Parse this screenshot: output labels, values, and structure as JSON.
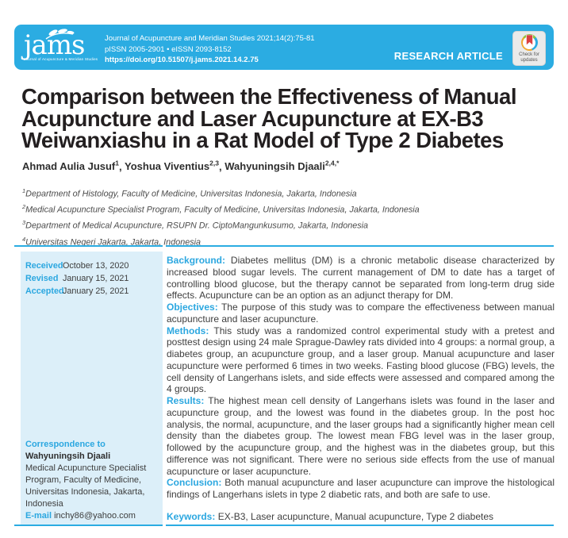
{
  "header": {
    "logo_text": "jams",
    "logo_subtitle": "Journal of Acupuncture & Meridian Studies",
    "journal_line": "Journal of Acupuncture and Meridian Studies 2021;14(2):75-81",
    "issn_line": "pISSN 2005-2901 • eISSN 2093-8152",
    "doi_line": "https://doi.org/10.51507/j.jams.2021.14.2.75",
    "article_type": "RESEARCH ARTICLE",
    "crossmark_line1": "Check for",
    "crossmark_line2": "updates"
  },
  "title_lines": [
    "Comparison between the Effectiveness of Manual",
    "Acupuncture and Laser Acupuncture at EX-B3",
    "Weiwanxiashu in a Rat Model of Type 2 Diabetes"
  ],
  "authors": [
    {
      "name": "Ahmad Aulia Jusuf",
      "sup": "1"
    },
    {
      "name": "Yoshua Viventius",
      "sup": "2,3"
    },
    {
      "name": "Wahyuningsih Djaali",
      "sup": "2,4,*"
    }
  ],
  "affiliations": [
    {
      "sup": "1",
      "text": "Department of Histology, Faculty of Medicine, Universitas Indonesia, Jakarta, Indonesia"
    },
    {
      "sup": "2",
      "text": "Medical Acupuncture Specialist Program, Faculty of Medicine, Universitas Indonesia, Jakarta, Indonesia"
    },
    {
      "sup": "3",
      "text": "Department of Medical Acupuncture, RSUPN Dr. CiptoMangunkusumo, Jakarta, Indonesia"
    },
    {
      "sup": "4",
      "text": "Universitas Negeri Jakarta, Jakarta, Indonesia"
    }
  ],
  "sidebar": {
    "history": [
      {
        "label": "Received",
        "value": "October 13, 2020"
      },
      {
        "label": "Revised",
        "value": "January 15, 2021"
      },
      {
        "label": "Accepted",
        "value": "January 25, 2021"
      }
    ],
    "correspondence": {
      "heading": "Correspondence to",
      "name": "Wahyuningsih Djaali",
      "address_lines": [
        "Medical Acupuncture Specialist",
        "Program, Faculty of Medicine,",
        "Universitas Indonesia, Jakarta,",
        "Indonesia"
      ],
      "email_label": "E-mail",
      "email": "inchy86@yahoo.com"
    }
  },
  "abstract": {
    "sections": [
      {
        "label": "Background:",
        "text": "Diabetes mellitus (DM) is a chronic metabolic disease characterized by increased blood sugar levels. The current management of DM to date has a target of controlling blood glucose, but the therapy cannot be separated from long-term drug side effects. Acupuncture can be an option as an adjunct therapy for DM."
      },
      {
        "label": "Objectives:",
        "text": "The purpose of this study was to compare the effectiveness between manual acupuncture and laser acupuncture."
      },
      {
        "label": "Methods:",
        "text": "This study was a randomized control experimental study with a pretest and posttest design using 24 male Sprague-Dawley rats divided into 4 groups: a normal group, a diabetes group, an acupuncture group, and a laser group. Manual acupuncture and laser acupuncture were performed 6 times in two weeks. Fasting blood glucose (FBG) levels, the cell density of Langerhans islets, and side effects were assessed and compared among the 4 groups."
      },
      {
        "label": "Results:",
        "text": "The highest mean cell density of Langerhans islets was found in the laser and acupuncture group, and the lowest was found in the diabetes group. In the post hoc analysis, the normal, acupuncture, and the laser groups had a significantly higher mean cell density than the diabetes group. The lowest mean FBG level was in the laser group, followed by the acupuncture group, and the highest was in the diabetes group, but this difference was not significant. There were no serious side effects from the use of manual acupuncture or laser acupuncture."
      },
      {
        "label": "Conclusion:",
        "text": "Both manual acupuncture and laser acupuncture can improve the histological findings of Langerhans islets in type 2 diabetic rats, and both are safe to use."
      }
    ],
    "keywords_label": "Keywords:",
    "keywords": "EX-B3, Laser acupuncture, Manual acupuncture, Type 2 diabetes"
  },
  "colors": {
    "accent": "#2BACE2",
    "sidebar_bg": "#DCEFF9",
    "body_text": "#3E3E3E",
    "title_text": "#231F20",
    "crossmark_red": "#D94141"
  }
}
